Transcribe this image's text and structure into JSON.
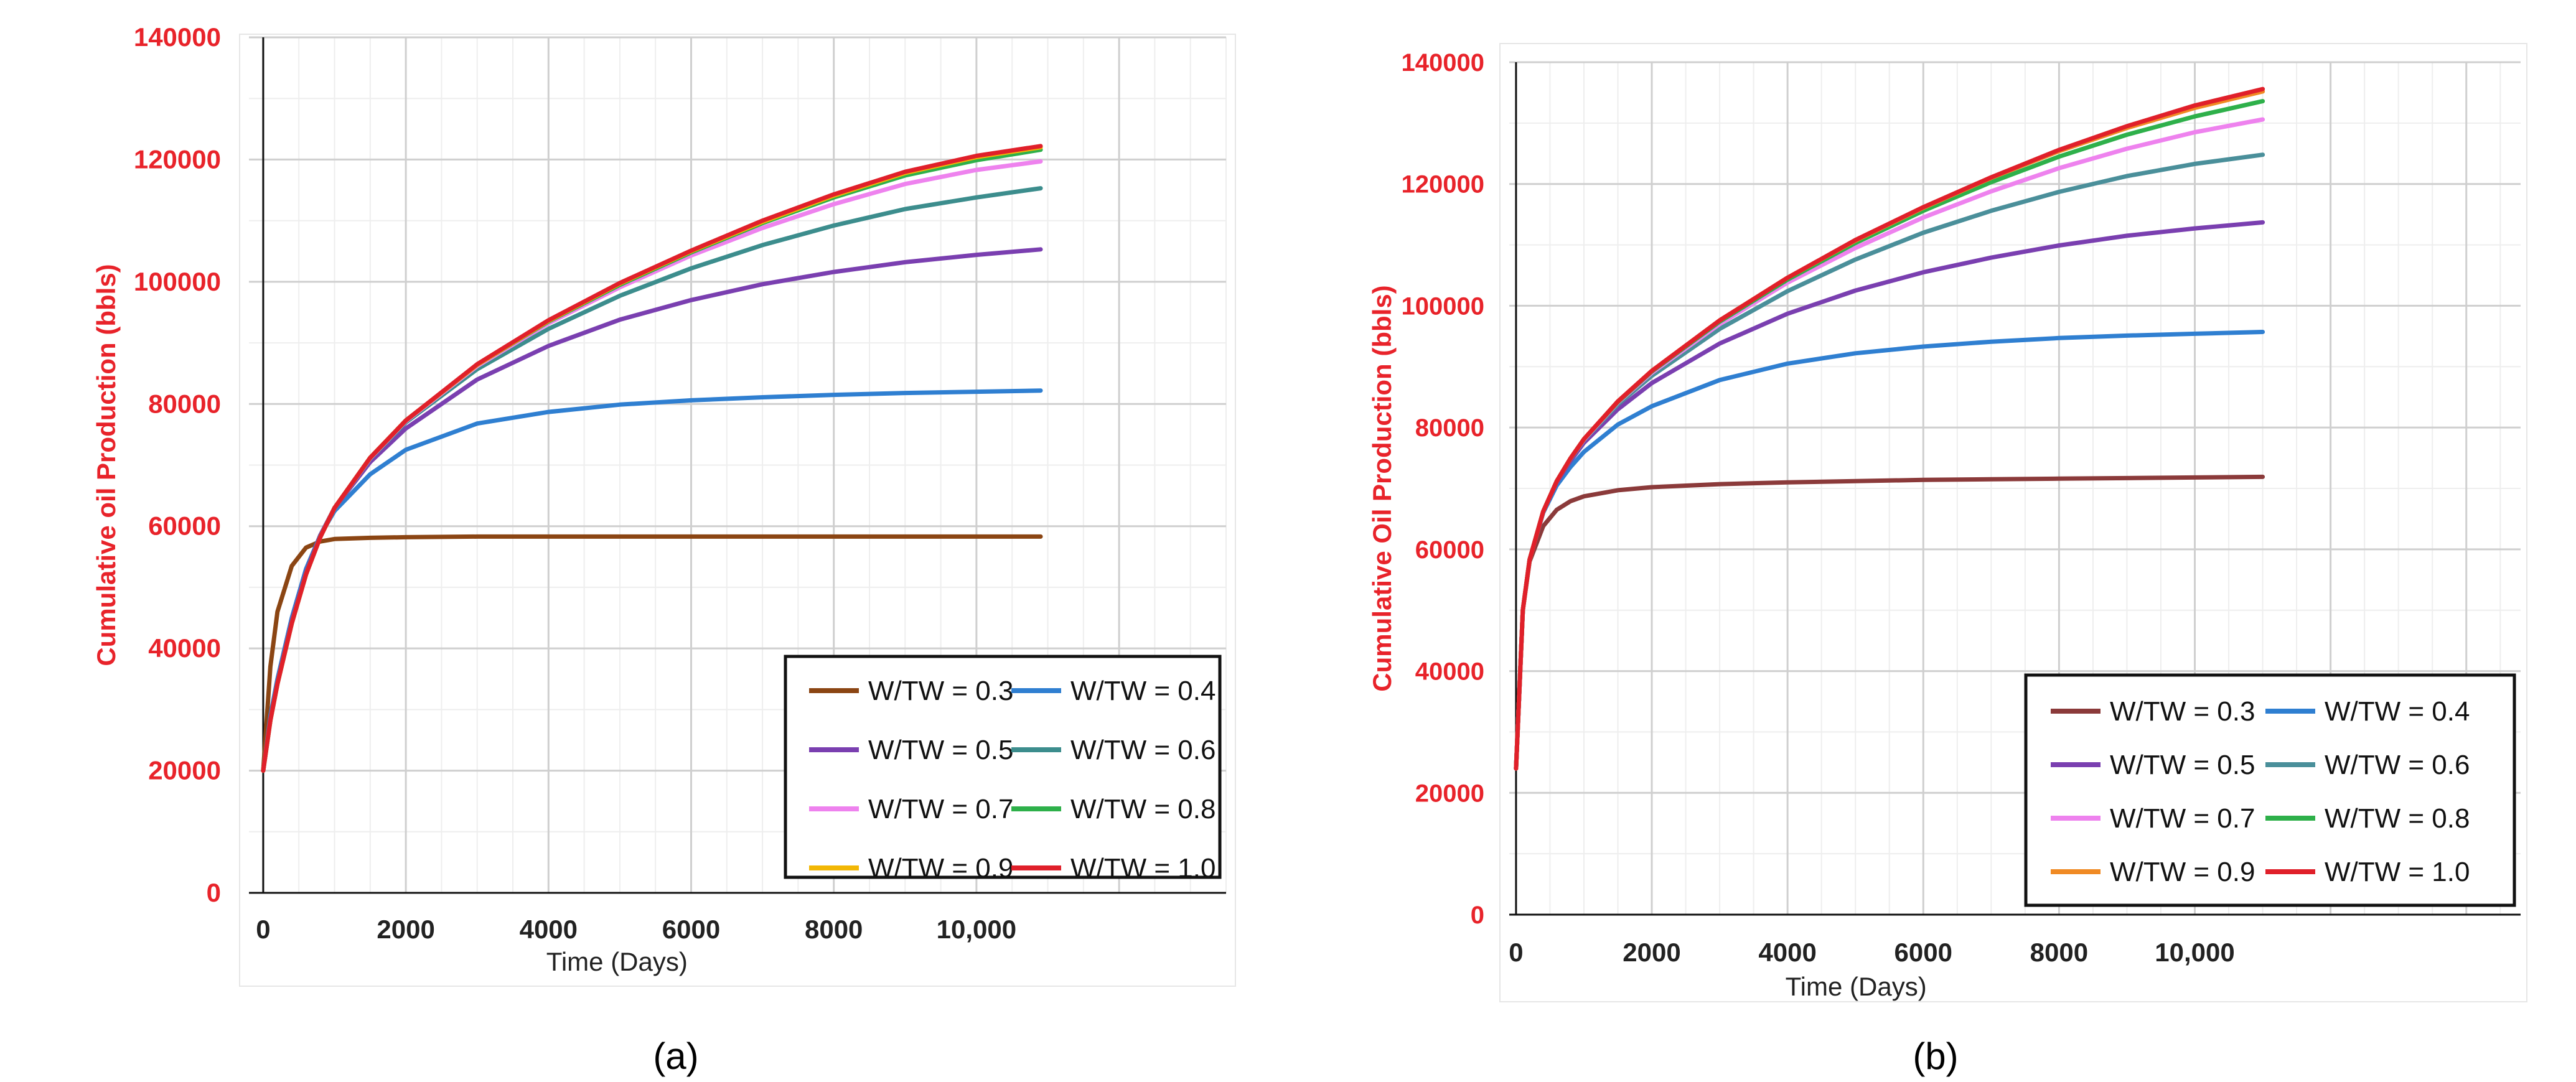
{
  "figure": {
    "panels": [
      "(a)",
      "(b)"
    ]
  },
  "colors": {
    "axis_label": "#e8232a",
    "tick_label_y": "#e8232a",
    "tick_label_x": "#222222",
    "grid_major": "#cfcfcf",
    "grid_minor": "#eeeeee",
    "axis_line": "#111111",
    "legend_border": "#111111"
  },
  "chart_data": [
    {
      "type": "line",
      "panel": "(a)",
      "title": "",
      "xlabel": "Time (Days)",
      "ylabel": "Cumulative oil Production  (bbls)",
      "xlim": [
        -200,
        13500
      ],
      "ylim": [
        0,
        140000
      ],
      "xticks": [
        0,
        2000,
        4000,
        6000,
        8000,
        10000
      ],
      "xtick_labels": [
        "0",
        "2000",
        "4000",
        "6000",
        "8000",
        "10,000"
      ],
      "yticks": [
        0,
        20000,
        40000,
        60000,
        80000,
        100000,
        120000,
        140000
      ],
      "ytick_labels": [
        "0",
        "20000",
        "40000",
        "60000",
        "80000",
        "100000",
        "120000",
        "140000"
      ],
      "grid": true,
      "legend_position": "bottom-right",
      "x": [
        0,
        100,
        200,
        400,
        600,
        800,
        1000,
        1500,
        2000,
        3000,
        4000,
        5000,
        6000,
        7000,
        8000,
        9000,
        10000,
        10900
      ],
      "series": [
        {
          "name": "W/TW = 0.3",
          "color": "#8b4513",
          "values": [
            20000,
            37000,
            46000,
            53500,
            56500,
            57500,
            57900,
            58100,
            58200,
            58300,
            58300,
            58300,
            58300,
            58300,
            58300,
            58300,
            58300,
            58300
          ]
        },
        {
          "name": "W/TW = 0.4",
          "color": "#2f7fd1",
          "values": [
            20000,
            29000,
            35000,
            45000,
            53000,
            58500,
            62500,
            68500,
            72500,
            76800,
            78700,
            79900,
            80600,
            81100,
            81500,
            81800,
            82000,
            82200
          ]
        },
        {
          "name": "W/TW = 0.5",
          "color": "#7a3fb0",
          "values": [
            20000,
            28500,
            34500,
            44500,
            52500,
            58500,
            63000,
            70500,
            76000,
            84000,
            89500,
            93800,
            97000,
            99600,
            101600,
            103200,
            104400,
            105300
          ]
        },
        {
          "name": "W/TW = 0.6",
          "color": "#3c8d8d",
          "values": [
            20000,
            28300,
            34300,
            44200,
            52200,
            58300,
            63000,
            71000,
            77000,
            85700,
            92300,
            97700,
            102200,
            106000,
            109200,
            111900,
            113800,
            115300
          ]
        },
        {
          "name": "W/TW = 0.7",
          "color": "#ee82ee",
          "values": [
            20000,
            28200,
            34200,
            44100,
            52100,
            58200,
            63000,
            71100,
            77200,
            86200,
            93200,
            99100,
            104300,
            108800,
            112700,
            116000,
            118300,
            119700
          ]
        },
        {
          "name": "W/TW = 0.8",
          "color": "#2eb04a",
          "values": [
            20000,
            28200,
            34200,
            44100,
            52100,
            58200,
            63000,
            71200,
            77300,
            86400,
            93500,
            99500,
            104800,
            109600,
            113800,
            117400,
            119900,
            121600
          ]
        },
        {
          "name": "W/TW = 0.9",
          "color": "#f2b705",
          "values": [
            20000,
            28200,
            34200,
            44100,
            52100,
            58200,
            63000,
            71200,
            77300,
            86400,
            93600,
            99700,
            105000,
            109800,
            114100,
            117800,
            120400,
            122000
          ]
        },
        {
          "name": "W/TW = 1.0",
          "color": "#e0202a",
          "values": [
            20000,
            28200,
            34200,
            44100,
            52100,
            58200,
            63000,
            71200,
            77300,
            86500,
            93700,
            99800,
            105100,
            110000,
            114300,
            118000,
            120600,
            122200
          ]
        }
      ]
    },
    {
      "type": "line",
      "panel": "(b)",
      "title": "",
      "xlabel": "Time (Days)",
      "ylabel": "Cumulative Oil Production (bbls)",
      "xlim": [
        -100,
        14800
      ],
      "ylim": [
        0,
        140000
      ],
      "xticks": [
        0,
        2000,
        4000,
        6000,
        8000,
        10000
      ],
      "xtick_labels": [
        "0",
        "2000",
        "4000",
        "6000",
        "8000",
        "10,000"
      ],
      "yticks": [
        0,
        20000,
        40000,
        60000,
        80000,
        100000,
        120000,
        140000
      ],
      "ytick_labels": [
        "0",
        "20000",
        "40000",
        "60000",
        "80000",
        "100000",
        "120000",
        "140000"
      ],
      "grid": true,
      "legend_position": "bottom-right",
      "x": [
        0,
        100,
        200,
        400,
        600,
        800,
        1000,
        1500,
        2000,
        3000,
        4000,
        5000,
        6000,
        7000,
        8000,
        9000,
        10000,
        11000
      ],
      "series": [
        {
          "name": "W/TW = 0.3",
          "color": "#8b3a3a",
          "values": [
            24000,
            50000,
            58000,
            63800,
            66500,
            67900,
            68700,
            69700,
            70200,
            70700,
            71000,
            71200,
            71400,
            71500,
            71600,
            71700,
            71800,
            71900
          ]
        },
        {
          "name": "W/TW = 0.4",
          "color": "#2f7fd1",
          "values": [
            24000,
            50000,
            58300,
            66000,
            70500,
            73500,
            76000,
            80500,
            83500,
            87800,
            90500,
            92200,
            93300,
            94100,
            94700,
            95100,
            95400,
            95700
          ]
        },
        {
          "name": "W/TW = 0.5",
          "color": "#7a3fb0",
          "values": [
            24000,
            50000,
            58300,
            66200,
            71000,
            74500,
            77500,
            83000,
            87300,
            93800,
            98700,
            102500,
            105500,
            107900,
            109900,
            111500,
            112700,
            113700
          ]
        },
        {
          "name": "W/TW = 0.6",
          "color": "#4a8f9a",
          "values": [
            24000,
            50000,
            58300,
            66200,
            71200,
            74800,
            77900,
            83800,
            88500,
            96200,
            102400,
            107600,
            112000,
            115600,
            118700,
            121300,
            123300,
            124800
          ]
        },
        {
          "name": "W/TW = 0.7",
          "color": "#ee82ee",
          "values": [
            24000,
            50000,
            58300,
            66200,
            71200,
            74900,
            78000,
            84100,
            89000,
            97000,
            103800,
            109500,
            114500,
            118800,
            122600,
            125800,
            128500,
            130600
          ]
        },
        {
          "name": "W/TW = 0.8",
          "color": "#2eb04a",
          "values": [
            24000,
            50000,
            58300,
            66200,
            71200,
            74900,
            78100,
            84200,
            89200,
            97400,
            104300,
            110300,
            115600,
            120300,
            124500,
            128100,
            131100,
            133600
          ]
        },
        {
          "name": "W/TW = 0.9",
          "color": "#f08a24",
          "values": [
            24000,
            50000,
            58300,
            66200,
            71200,
            74900,
            78100,
            84300,
            89300,
            97600,
            104600,
            110700,
            116100,
            121000,
            125400,
            129200,
            132500,
            135200
          ]
        },
        {
          "name": "W/TW = 1.0",
          "color": "#e0202a",
          "values": [
            24000,
            50000,
            58300,
            66200,
            71200,
            74900,
            78100,
            84300,
            89300,
            97600,
            104600,
            110800,
            116200,
            121100,
            125600,
            129500,
            132900,
            135600
          ]
        }
      ]
    }
  ]
}
